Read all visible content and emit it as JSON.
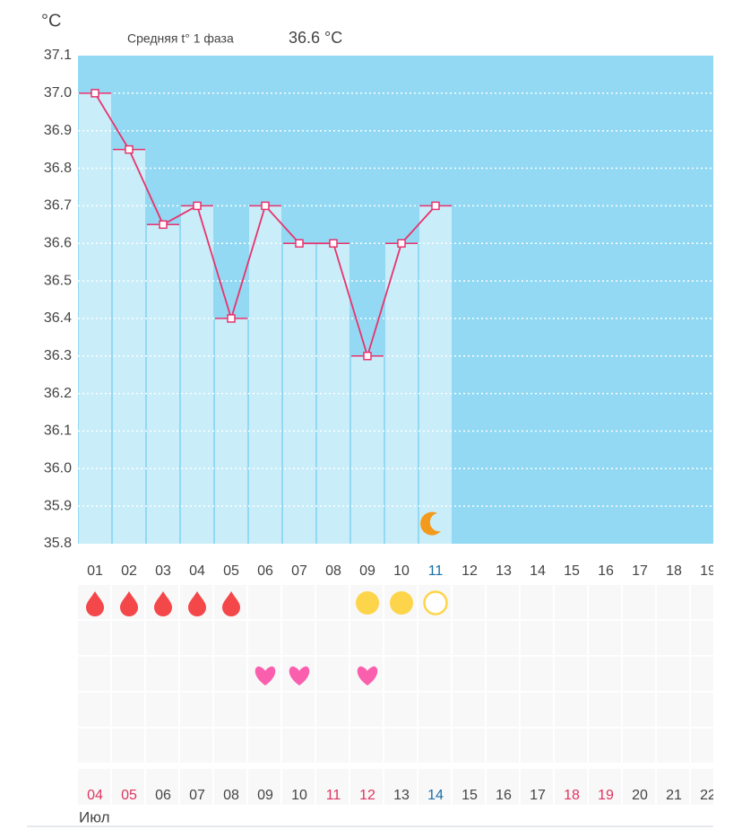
{
  "chart_data": {
    "type": "bar",
    "unit_label": "°C",
    "avg_label": "Средняя t° 1 фаза",
    "avg_value": "36.6 °C",
    "categories": [
      "01",
      "02",
      "03",
      "04",
      "05",
      "06",
      "07",
      "08",
      "09",
      "10",
      "11",
      "12",
      "13",
      "14",
      "15",
      "16",
      "17",
      "18",
      "19"
    ],
    "values": [
      37.0,
      36.85,
      36.65,
      36.7,
      36.4,
      36.7,
      36.6,
      36.6,
      36.3,
      36.6,
      36.7,
      null,
      null,
      null,
      null,
      null,
      null,
      null,
      null
    ],
    "color": "#c9edf9",
    "background_color": "#93d9f3",
    "line_color": "#e8336d",
    "ylim": [
      35.8,
      37.1
    ],
    "yticks": [
      35.8,
      35.9,
      {
        "value": 36.0,
        "label": "36.0"
      },
      36.1,
      36.2,
      36.3,
      36.4,
      36.5,
      36.6,
      36.7,
      36.8,
      36.9,
      {
        "value": 37.0,
        "label": "37.0"
      },
      37.1
    ],
    "grid": true,
    "dates": [
      "04",
      "05",
      "06",
      "07",
      "08",
      "09",
      "10",
      "11",
      "12",
      "13",
      "14",
      "15",
      "16",
      "17",
      "18",
      "19",
      "20",
      "21",
      "22"
    ],
    "month": "Июл"
  }
}
